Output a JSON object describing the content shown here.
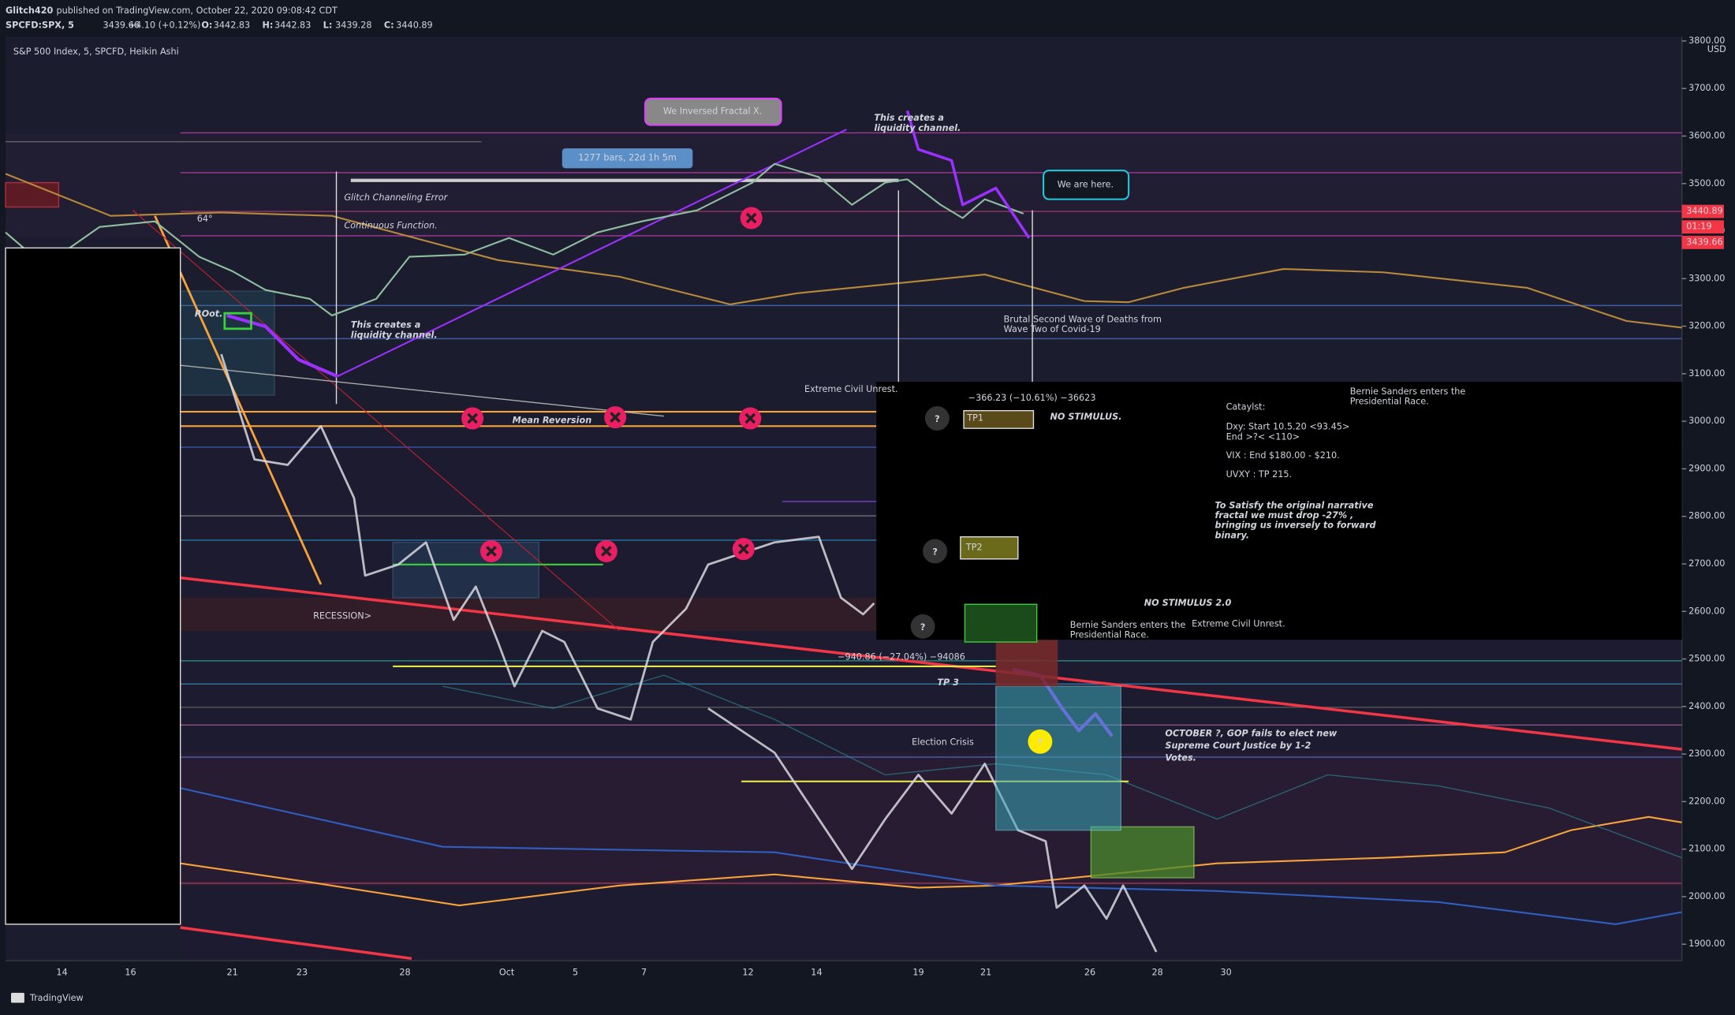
{
  "header": {
    "author": "Glitch420",
    "published": "published on TradingView.com, October 22, 2020 09:08:42 CDT",
    "symbol": "SPCFD:SPX, 5",
    "last": "3439.66",
    "change": "+4.10 (+0.12%)",
    "ohlc": [
      {
        "label": "O:",
        "value": "3442.83"
      },
      {
        "label": "H:",
        "value": "3442.83"
      },
      {
        "label": "L:",
        "value": "3439.28"
      },
      {
        "label": "C:",
        "value": "3440.89"
      }
    ]
  },
  "legend": "S&P 500 Index, 5, SPCFD, Heikin Ashi",
  "price_axis": {
    "currency": "USD",
    "ticks": [
      "3800.00",
      "3700.00",
      "3600.00",
      "3500.00",
      "3400.00",
      "3300.00",
      "3200.00",
      "3100.00",
      "3000.00",
      "2900.00",
      "2800.00",
      "2700.00",
      "2600.00",
      "2500.00",
      "2400.00",
      "2300.00",
      "2200.00",
      "2100.00",
      "2000.00",
      "1900.00"
    ],
    "badge_high": "3440.89",
    "badge_timer": "01:19",
    "badge_low": "3439.66"
  },
  "time_axis": [
    "14",
    "16",
    "21",
    "23",
    "28",
    "Oct",
    "5",
    "7",
    "12",
    "14",
    "19",
    "21",
    "26",
    "28",
    "30"
  ],
  "annotations": {
    "fractal": "We Inversed Fractal X.",
    "bars": "1277 bars, 22d 1h 5m",
    "liquidity_top": [
      "This creates a",
      "liquidity channel."
    ],
    "here": "We are here.",
    "glitch": "Glitch Channeling Error",
    "continuous": "Continuous Function.",
    "angle": "64°",
    "root": "ROot.",
    "liquidity_left": [
      "This creates a",
      "liquidity channel."
    ],
    "brutal": [
      "Brutal Second Wave of Deaths from",
      "Wave Two of Covid-19"
    ],
    "civil_top": "Extreme Civil Unrest.",
    "measure_1": "−366.23 (−10.61%) −36623",
    "tp1": "TP1",
    "no_stimulus": "NO STIMULUS.",
    "catalyst": [
      "Cataylst:",
      "Dxy: Start 10.5.20 <93.45>",
      "End >?< <110>",
      "VIX : End $180.00 - $210.",
      "UVXY : TP 215."
    ],
    "bernie_top": [
      "Bernie Sanders enters the",
      "Presidential Race."
    ],
    "satisfy": [
      "To Satisfy the original narrative",
      "fractal we must drop -27% ,",
      "bringing us inversely to forward",
      "binary."
    ],
    "tp2": "TP2",
    "no_stimulus_2": "NO STIMULUS 2.0",
    "bernie_bottom": [
      "Bernie Sanders enters the",
      "Presidential Race."
    ],
    "civil_bottom": "Extreme Civil Unrest.",
    "measure_2": "−940.86 (−27.04%) −94086",
    "tp3": "TP 3",
    "mean_reversion": "Mean Reversion",
    "recession": "RECESSION>",
    "election": "Election Crisis",
    "october": [
      "OCTOBER ?, GOP fails to elect new",
      "Supreme Court Justice by 1-2",
      "Votes."
    ],
    "question": "?"
  },
  "footer": "TradingView"
}
